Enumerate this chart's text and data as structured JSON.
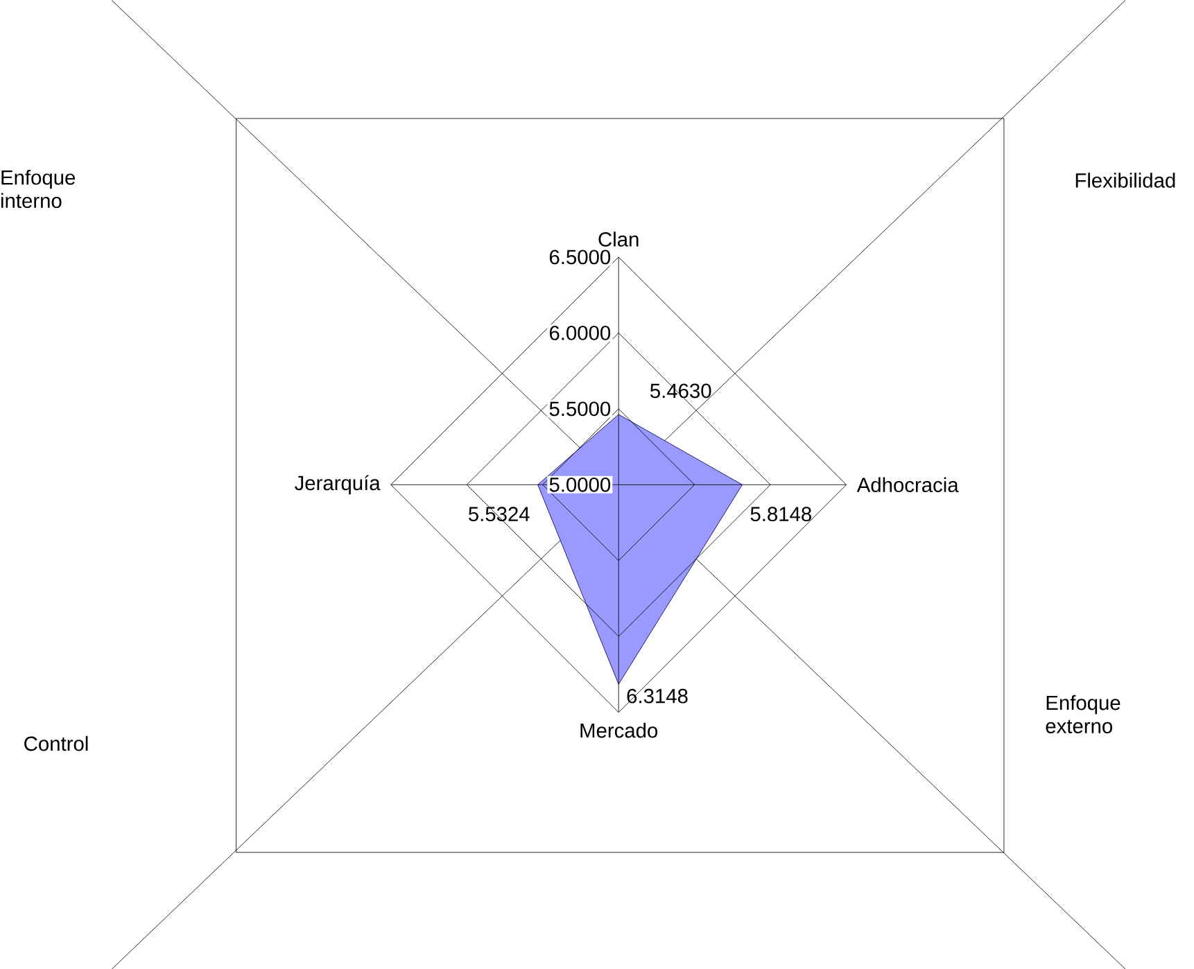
{
  "chart_data": {
    "type": "radar",
    "categories": [
      "Clan",
      "Adhocracia",
      "Mercado",
      "Jerarquía"
    ],
    "series": [
      {
        "color": "#9999ff",
        "values": [
          5.463,
          5.8148,
          6.3148,
          5.5324
        ],
        "value_labels": [
          "5.4630",
          "5.8148",
          "6.3148",
          "5.5324"
        ]
      }
    ],
    "ylim": [
      5,
      6.5
    ],
    "yticks": [
      {
        "value": 5,
        "label": "5.0000"
      },
      {
        "value": 5.5,
        "label": "5.5000"
      },
      {
        "value": 6,
        "label": "6.0000"
      },
      {
        "value": 6.5,
        "label": "6.5000"
      }
    ],
    "grid": true,
    "annotations": [
      "Enfoque interno",
      "Flexibilidad",
      "Control",
      "Enfoque externo"
    ]
  }
}
